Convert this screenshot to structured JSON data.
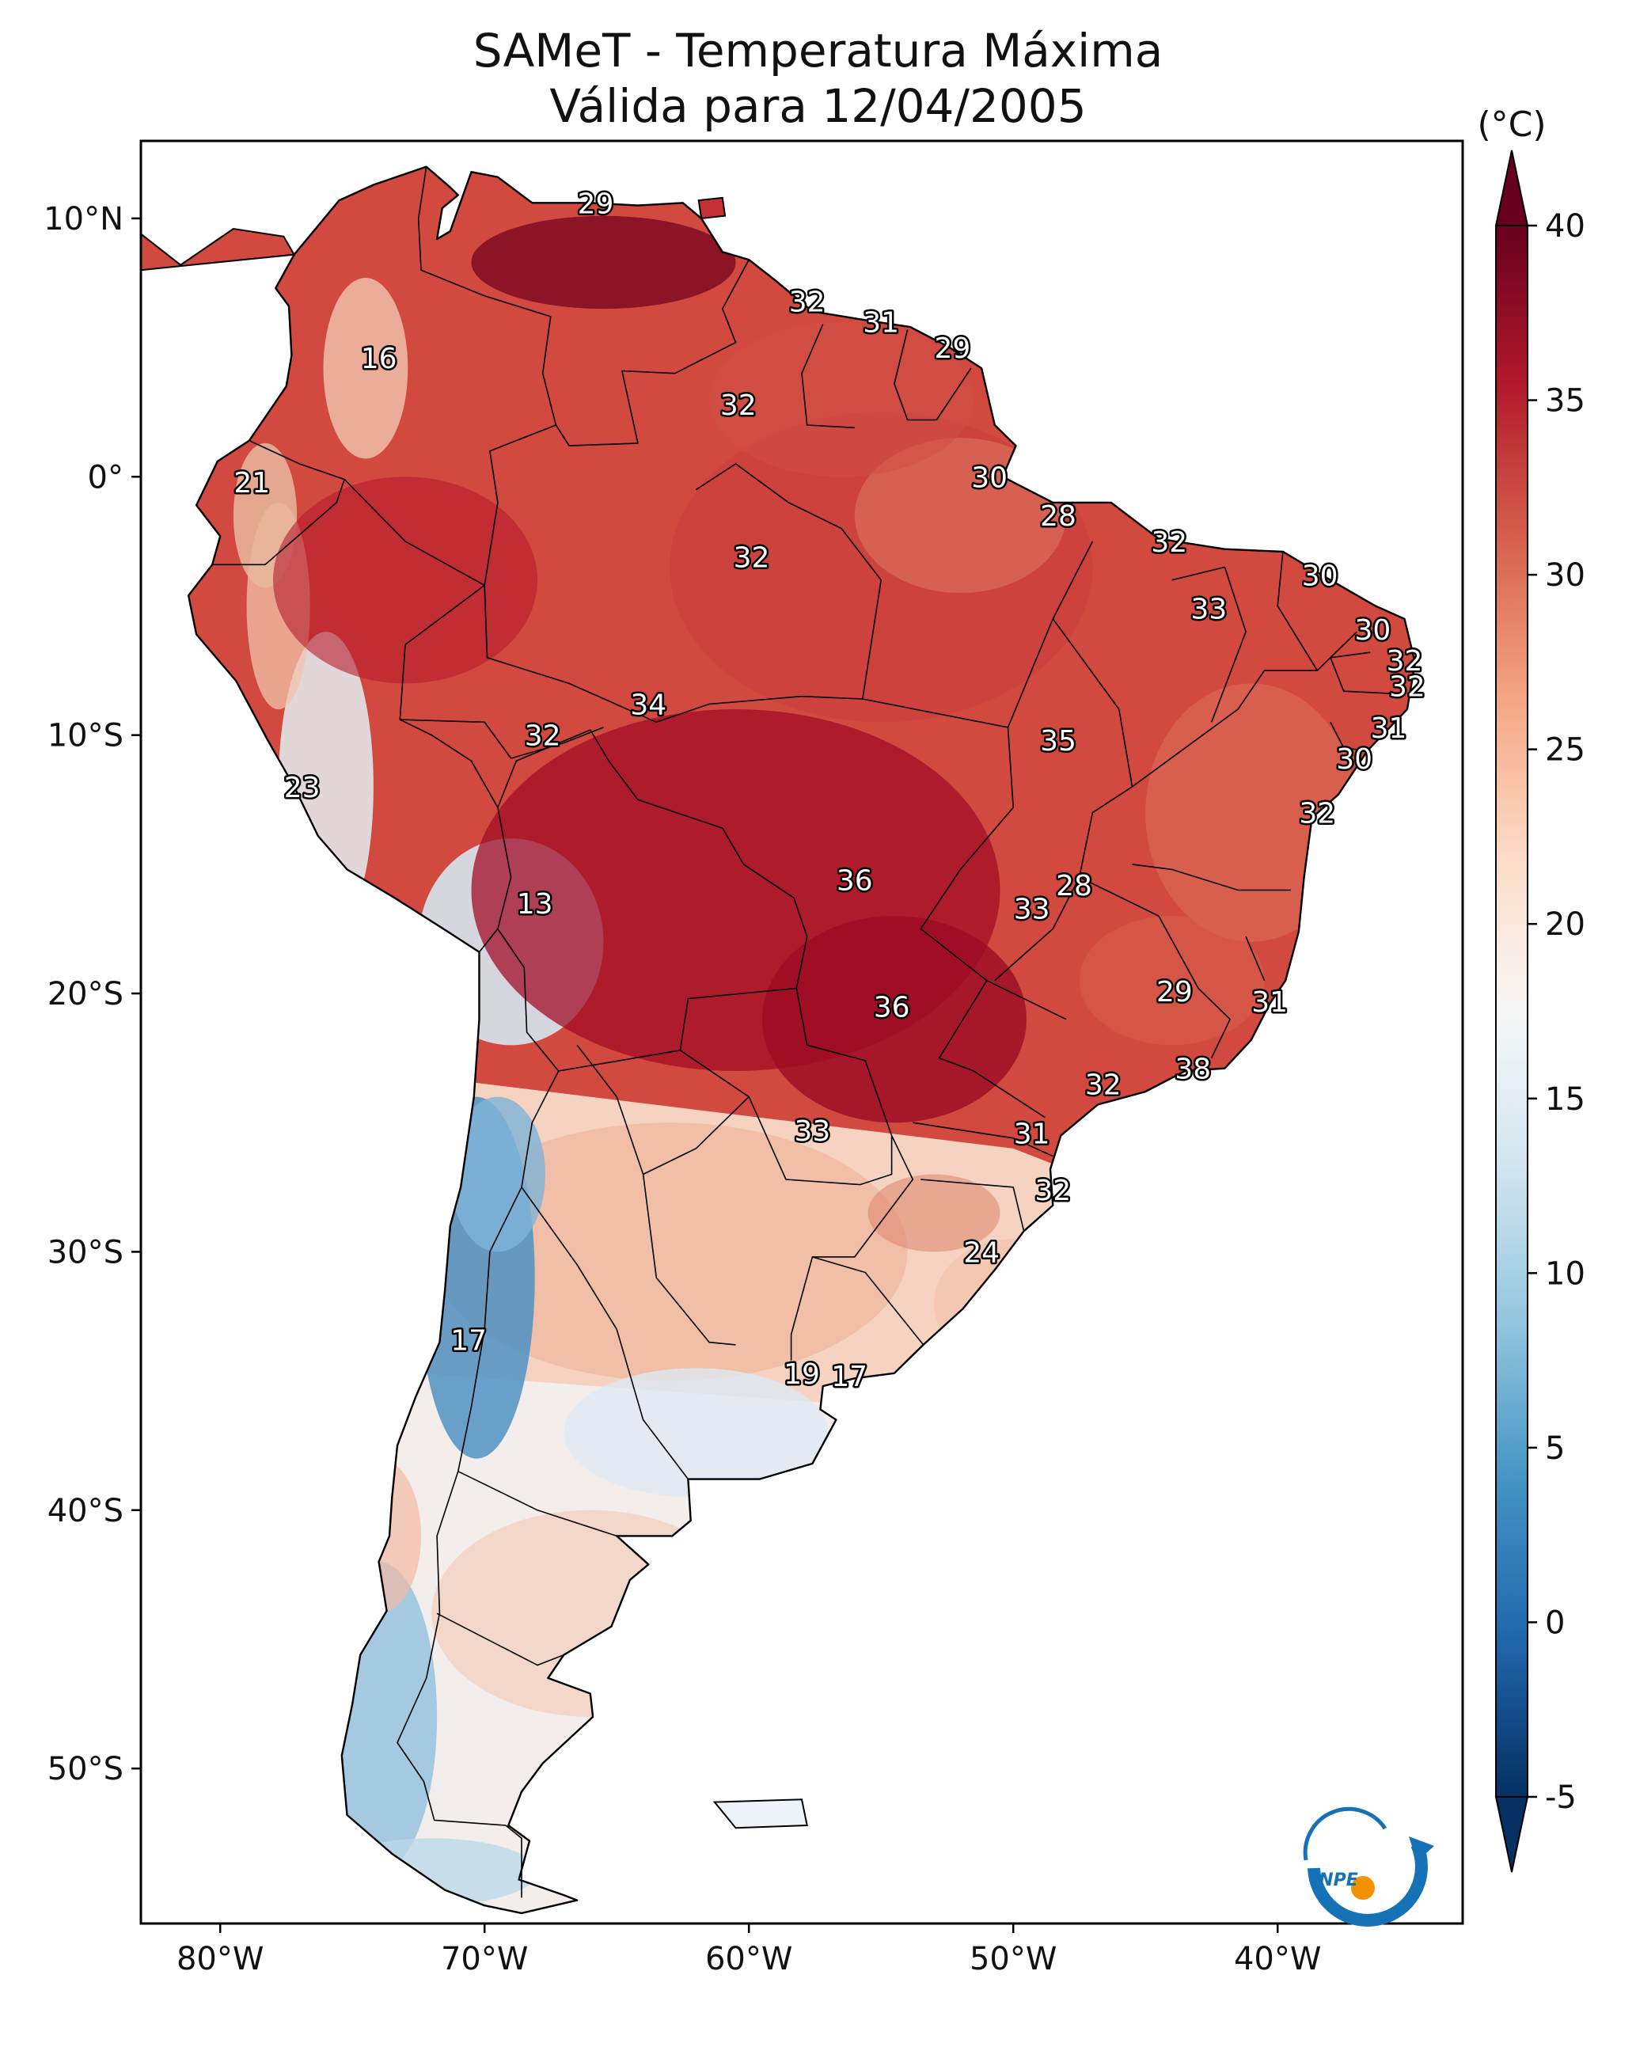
{
  "title": {
    "line1": "SAMeT - Temperatura Máxima",
    "line2": "Válida para 12/04/2005"
  },
  "map": {
    "lon_range": [
      -83,
      -33
    ],
    "lat_range": [
      -56,
      13
    ],
    "lat_ticks": [
      {
        "value": 10,
        "label": "10°N"
      },
      {
        "value": 0,
        "label": "0°"
      },
      {
        "value": -10,
        "label": "10°S"
      },
      {
        "value": -20,
        "label": "20°S"
      },
      {
        "value": -30,
        "label": "30°S"
      },
      {
        "value": -40,
        "label": "40°S"
      },
      {
        "value": -50,
        "label": "50°S"
      }
    ],
    "lon_ticks": [
      {
        "value": -80,
        "label": "80°W"
      },
      {
        "value": -70,
        "label": "70°W"
      },
      {
        "value": -60,
        "label": "60°W"
      },
      {
        "value": -50,
        "label": "50°W"
      },
      {
        "value": -40,
        "label": "40°W"
      }
    ],
    "station_labels": [
      {
        "text": "29",
        "lon": -65.8,
        "lat": 10.6
      },
      {
        "text": "32",
        "lon": -57.8,
        "lat": 6.8
      },
      {
        "text": "31",
        "lon": -55.0,
        "lat": 6.0
      },
      {
        "text": "29",
        "lon": -52.3,
        "lat": 5.0
      },
      {
        "text": "16",
        "lon": -74.0,
        "lat": 4.6
      },
      {
        "text": "32",
        "lon": -60.4,
        "lat": 2.8
      },
      {
        "text": "21",
        "lon": -78.8,
        "lat": -0.2
      },
      {
        "text": "30",
        "lon": -50.9,
        "lat": 0.0
      },
      {
        "text": "28",
        "lon": -48.3,
        "lat": -1.5
      },
      {
        "text": "32",
        "lon": -44.1,
        "lat": -2.5
      },
      {
        "text": "32",
        "lon": -59.9,
        "lat": -3.1
      },
      {
        "text": "30",
        "lon": -38.4,
        "lat": -3.8
      },
      {
        "text": "33",
        "lon": -42.6,
        "lat": -5.1
      },
      {
        "text": "30",
        "lon": -36.4,
        "lat": -5.9
      },
      {
        "text": "32",
        "lon": -35.2,
        "lat": -7.1
      },
      {
        "text": "32",
        "lon": -35.1,
        "lat": -8.1
      },
      {
        "text": "34",
        "lon": -63.8,
        "lat": -8.8
      },
      {
        "text": "31",
        "lon": -35.8,
        "lat": -9.7
      },
      {
        "text": "32",
        "lon": -67.8,
        "lat": -10.0
      },
      {
        "text": "35",
        "lon": -48.3,
        "lat": -10.2
      },
      {
        "text": "30",
        "lon": -37.1,
        "lat": -10.9
      },
      {
        "text": "23",
        "lon": -76.9,
        "lat": -12.0
      },
      {
        "text": "32",
        "lon": -38.5,
        "lat": -13.0
      },
      {
        "text": "36",
        "lon": -56.0,
        "lat": -15.6
      },
      {
        "text": "28",
        "lon": -47.7,
        "lat": -15.8
      },
      {
        "text": "13",
        "lon": -68.1,
        "lat": -16.5
      },
      {
        "text": "33",
        "lon": -49.3,
        "lat": -16.7
      },
      {
        "text": "29",
        "lon": -43.9,
        "lat": -19.9
      },
      {
        "text": "31",
        "lon": -40.3,
        "lat": -20.3
      },
      {
        "text": "36",
        "lon": -54.6,
        "lat": -20.5
      },
      {
        "text": "38",
        "lon": -43.2,
        "lat": -22.9
      },
      {
        "text": "32",
        "lon": -46.6,
        "lat": -23.5
      },
      {
        "text": "33",
        "lon": -57.6,
        "lat": -25.3
      },
      {
        "text": "31",
        "lon": -49.3,
        "lat": -25.4
      },
      {
        "text": "32",
        "lon": -48.5,
        "lat": -27.6
      },
      {
        "text": "24",
        "lon": -51.2,
        "lat": -30.0
      },
      {
        "text": "17",
        "lon": -70.6,
        "lat": -33.4
      },
      {
        "text": "19",
        "lon": -58.0,
        "lat": -34.7
      },
      {
        "text": "17",
        "lon": -56.2,
        "lat": -34.8
      }
    ]
  },
  "colorbar": {
    "unit": "(°C)",
    "min": -5,
    "max": 40,
    "ticks": [
      {
        "value": 40,
        "label": "40"
      },
      {
        "value": 35,
        "label": "35"
      },
      {
        "value": 30,
        "label": "30"
      },
      {
        "value": 25,
        "label": "25"
      },
      {
        "value": 20,
        "label": "20"
      },
      {
        "value": 15,
        "label": "15"
      },
      {
        "value": 10,
        "label": "10"
      },
      {
        "value": 5,
        "label": "5"
      },
      {
        "value": 0,
        "label": "0"
      },
      {
        "value": -5,
        "label": "-5"
      }
    ],
    "colors": [
      "#053061",
      "#2166ac",
      "#4393c3",
      "#92c5de",
      "#d1e5f0",
      "#f7f7f7",
      "#fddbc7",
      "#f4a582",
      "#d6604d",
      "#b2182b",
      "#67001f"
    ]
  },
  "logo": {
    "text": "INPE",
    "colors": [
      "#1572b6",
      "#f39200"
    ]
  }
}
